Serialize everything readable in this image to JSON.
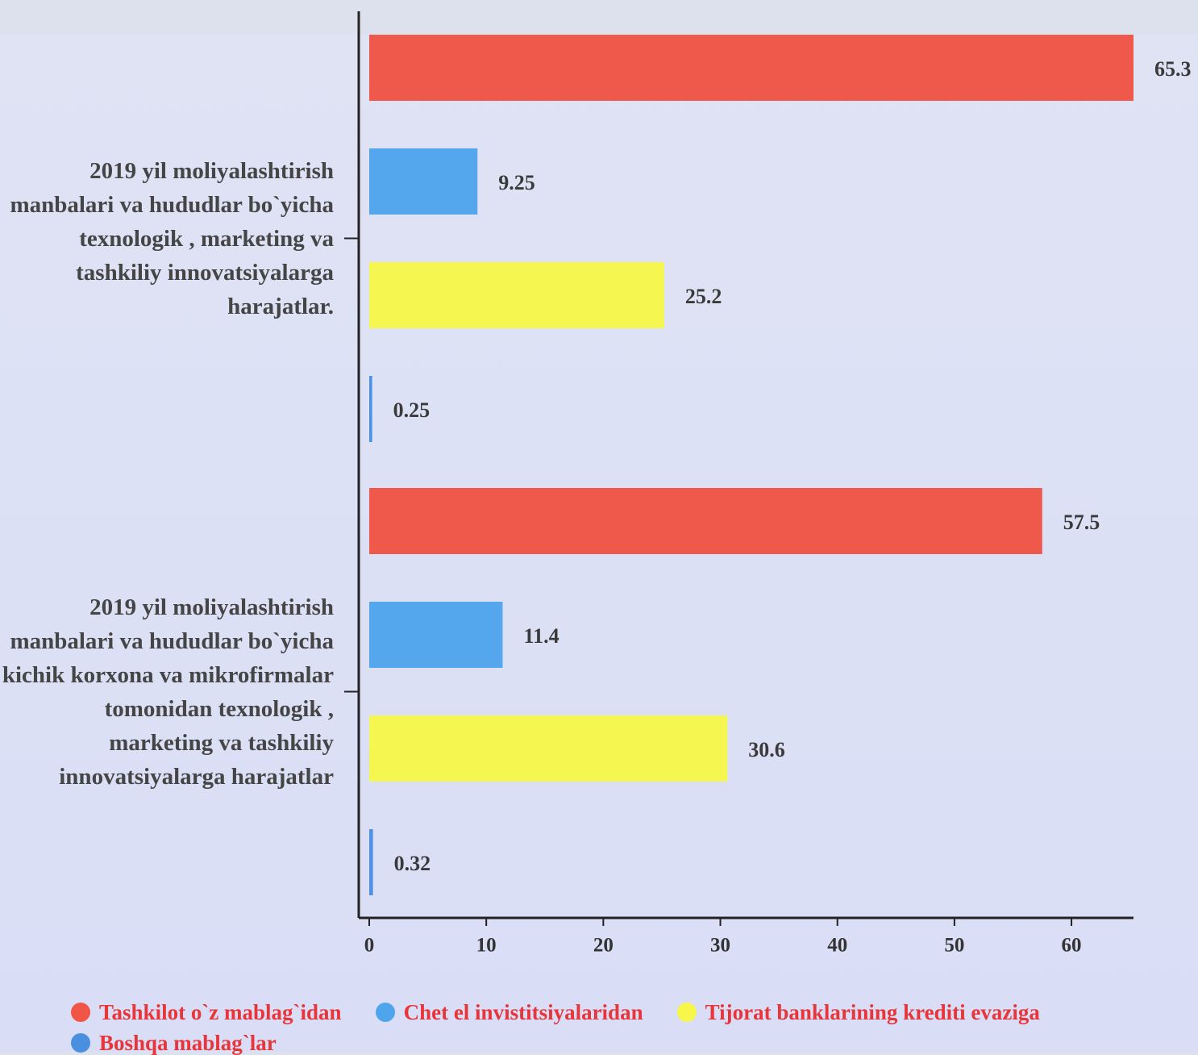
{
  "chart_data": {
    "type": "bar",
    "orientation": "horizontal",
    "categories": [
      "2019 yil moliyalashtirish manbalari va hududlar bo`yicha texnologik , marketing va tashkiliy innovatsiyalarga harajatlar.",
      "2019 yil moliyalashtirish manbalari va hududlar bo`yicha kichik korxona va mikrofirmalar tomonidan  texnologik , marketing va tashkiliy innovatsiyalarga harajatlar"
    ],
    "series": [
      {
        "name": "Tashkilot o`z mablag`idan",
        "color": "#f05545",
        "values": [
          65.3,
          57.5
        ]
      },
      {
        "name": "Chet el invistitsiyalaridan",
        "color": "#4fa5ec",
        "values": [
          9.25,
          11.4
        ]
      },
      {
        "name": "Tijorat banklarining krediti evaziga",
        "color": "#f7f74a",
        "values": [
          25.2,
          30.6
        ]
      },
      {
        "name": "Boshqa mablag`lar",
        "color": "#4a8fe0",
        "values": [
          0.25,
          0.32
        ]
      }
    ],
    "xlim": [
      0,
      65.3
    ],
    "xticks": [
      0,
      10,
      20,
      30,
      40,
      50,
      60
    ]
  }
}
